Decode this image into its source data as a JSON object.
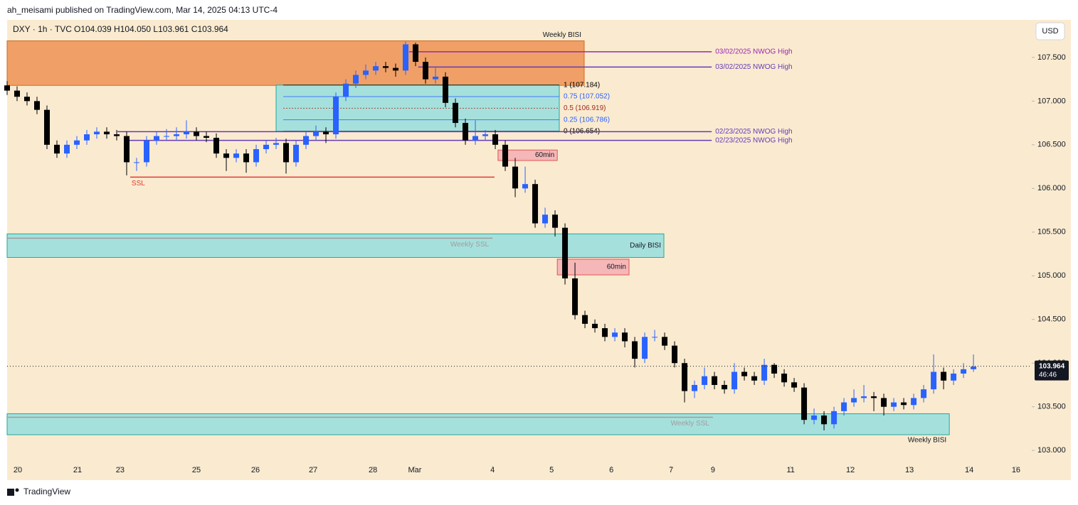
{
  "header": {
    "publisher": "ah_meisami published on TradingView.com, Mar 14, 2025 04:13 UTC-4",
    "symbol": "DXY · 1h · TVC",
    "ohlc": "O104.039 H104.050 L103.961 C103.964",
    "currency": "USD",
    "footer": "TradingView"
  },
  "chart_data": {
    "type": "candlestick",
    "up_color": "#2962ff",
    "down_color": "#000000",
    "xlim": [
      0,
      411.4
    ],
    "ylim": [
      102.66,
      107.93
    ],
    "xticks": [
      {
        "value": 4.3,
        "label": "20"
      },
      {
        "value": 28.3,
        "label": "21"
      },
      {
        "value": 45.4,
        "label": "23"
      },
      {
        "value": 76,
        "label": "25"
      },
      {
        "value": 99.7,
        "label": "26"
      },
      {
        "value": 122.9,
        "label": "27"
      },
      {
        "value": 146.9,
        "label": "28"
      },
      {
        "value": 163.7,
        "label": "Mar"
      },
      {
        "value": 194.9,
        "label": "4"
      },
      {
        "value": 218.6,
        "label": "5"
      },
      {
        "value": 242.6,
        "label": "6"
      },
      {
        "value": 266.6,
        "label": "7"
      },
      {
        "value": 283.4,
        "label": "9"
      },
      {
        "value": 314.6,
        "label": "11"
      },
      {
        "value": 338.6,
        "label": "12"
      },
      {
        "value": 362.3,
        "label": "13"
      },
      {
        "value": 386.3,
        "label": "14"
      },
      {
        "value": 405.1,
        "label": "16"
      }
    ],
    "yticks": [
      {
        "value": 103.0,
        "label": "103.000"
      },
      {
        "value": 103.5,
        "label": "103.500"
      },
      {
        "value": 104.0,
        "label": "104.000"
      },
      {
        "value": 104.5,
        "label": "104.500"
      },
      {
        "value": 105.0,
        "label": "105.000"
      },
      {
        "value": 105.5,
        "label": "105.500"
      },
      {
        "value": 106.0,
        "label": "106.000"
      },
      {
        "value": 106.5,
        "label": "106.500"
      },
      {
        "value": 107.0,
        "label": "107.000"
      },
      {
        "value": 107.5,
        "label": "107.500"
      }
    ],
    "x": [
      0,
      4,
      8,
      12,
      16,
      20,
      24,
      28,
      32,
      36,
      40,
      44,
      48,
      52,
      56,
      60,
      64,
      68,
      72,
      76,
      80,
      84,
      88,
      92,
      96,
      100,
      104,
      108,
      112,
      116,
      120,
      124,
      128,
      132,
      136,
      140,
      144,
      148,
      152,
      156,
      160,
      164,
      168,
      172,
      176,
      180,
      184,
      188,
      192,
      196,
      200,
      204,
      208,
      212,
      216,
      220,
      224,
      228,
      232,
      236,
      240,
      244,
      248,
      252,
      256,
      260,
      264,
      268,
      272,
      276,
      280,
      284,
      288,
      292,
      296,
      300,
      304,
      308,
      312,
      316,
      320,
      324,
      328,
      332,
      336,
      340,
      344,
      348,
      352,
      356,
      360,
      364,
      368,
      372,
      376,
      380,
      384,
      388
    ],
    "open": [
      107.18,
      107.12,
      107.05,
      107.0,
      106.9,
      106.5,
      106.4,
      106.5,
      106.55,
      106.62,
      106.65,
      106.62,
      106.6,
      106.3,
      106.3,
      106.55,
      106.6,
      106.6,
      106.62,
      106.65,
      106.6,
      106.58,
      106.4,
      106.35,
      106.4,
      106.3,
      106.45,
      106.5,
      106.52,
      106.3,
      106.5,
      106.6,
      106.65,
      106.62,
      107.05,
      107.2,
      107.3,
      107.35,
      107.4,
      107.38,
      107.35,
      107.65,
      107.45,
      107.25,
      107.28,
      106.98,
      106.75,
      106.55,
      106.6,
      106.62,
      106.5,
      106.25,
      106.0,
      106.05,
      105.6,
      105.7,
      105.55,
      104.97,
      104.55,
      104.45,
      104.4,
      104.3,
      104.35,
      104.25,
      104.05,
      104.3,
      104.3,
      104.2,
      104.0,
      103.68,
      103.75,
      103.85,
      103.75,
      103.7,
      103.9,
      103.85,
      103.8,
      103.98,
      103.88,
      103.78,
      103.72,
      103.35,
      103.4,
      103.3,
      103.45,
      103.55,
      103.6,
      103.62,
      103.6,
      103.5,
      103.55,
      103.52,
      103.6,
      103.7,
      103.9,
      103.8,
      103.88,
      103.93
    ],
    "high": [
      107.23,
      107.17,
      107.1,
      107.05,
      106.95,
      106.55,
      106.55,
      106.6,
      106.67,
      106.7,
      106.7,
      106.67,
      106.65,
      106.35,
      106.6,
      106.65,
      106.68,
      106.7,
      106.78,
      106.7,
      106.65,
      106.63,
      106.45,
      106.45,
      106.45,
      106.5,
      106.55,
      106.58,
      106.57,
      106.55,
      106.65,
      106.72,
      106.7,
      107.1,
      107.25,
      107.35,
      107.42,
      107.45,
      107.45,
      107.43,
      107.68,
      107.67,
      107.5,
      107.38,
      107.33,
      107.03,
      106.8,
      106.78,
      106.67,
      106.67,
      106.55,
      106.35,
      106.25,
      106.1,
      105.78,
      105.75,
      105.6,
      105.15,
      104.6,
      104.5,
      104.45,
      104.4,
      104.4,
      104.3,
      104.35,
      104.38,
      104.35,
      104.25,
      104.05,
      103.8,
      103.95,
      103.9,
      103.8,
      104.0,
      103.95,
      103.9,
      104.05,
      104.0,
      103.93,
      103.83,
      103.77,
      103.48,
      103.45,
      103.5,
      103.6,
      103.7,
      103.75,
      103.67,
      103.65,
      103.6,
      103.6,
      103.65,
      103.75,
      104.1,
      103.95,
      103.93,
      104.0,
      104.1
    ],
    "low": [
      107.07,
      107.0,
      106.95,
      106.85,
      106.45,
      106.35,
      106.35,
      106.45,
      106.5,
      106.57,
      106.57,
      106.55,
      106.15,
      106.2,
      106.25,
      106.5,
      106.55,
      106.55,
      106.57,
      106.55,
      106.53,
      106.35,
      106.2,
      106.3,
      106.18,
      106.25,
      106.4,
      106.45,
      106.17,
      106.25,
      106.45,
      106.55,
      106.52,
      106.57,
      107.0,
      107.15,
      107.25,
      107.3,
      107.33,
      107.28,
      107.3,
      107.4,
      107.2,
      107.2,
      106.93,
      106.7,
      106.5,
      106.5,
      106.55,
      106.45,
      106.2,
      105.9,
      105.95,
      105.55,
      105.55,
      105.45,
      104.9,
      104.5,
      104.4,
      104.35,
      104.25,
      104.25,
      104.18,
      103.95,
      104.0,
      104.25,
      104.15,
      103.95,
      103.55,
      103.6,
      103.7,
      103.7,
      103.65,
      103.65,
      103.8,
      103.75,
      103.75,
      103.83,
      103.73,
      103.67,
      103.3,
      103.3,
      103.23,
      103.25,
      103.4,
      103.5,
      103.55,
      103.45,
      103.4,
      103.45,
      103.47,
      103.47,
      103.55,
      103.65,
      103.7,
      103.75,
      103.83,
      103.9
    ],
    "close": [
      107.12,
      107.05,
      107.0,
      106.9,
      106.5,
      106.4,
      106.5,
      106.55,
      106.62,
      106.65,
      106.62,
      106.6,
      106.3,
      106.3,
      106.55,
      106.6,
      106.6,
      106.62,
      106.65,
      106.6,
      106.58,
      106.4,
      106.35,
      106.4,
      106.3,
      106.45,
      106.5,
      106.52,
      106.3,
      106.5,
      106.6,
      106.65,
      106.62,
      107.05,
      107.2,
      107.3,
      107.35,
      107.4,
      107.38,
      107.35,
      107.65,
      107.45,
      107.25,
      107.28,
      106.98,
      106.75,
      106.55,
      106.6,
      106.62,
      106.5,
      106.25,
      106.0,
      106.05,
      105.6,
      105.7,
      105.55,
      104.97,
      104.55,
      104.45,
      104.4,
      104.3,
      104.35,
      104.25,
      104.05,
      104.3,
      104.3,
      104.2,
      104.0,
      103.68,
      103.75,
      103.85,
      103.75,
      103.7,
      103.9,
      103.85,
      103.8,
      103.98,
      103.88,
      103.78,
      103.72,
      103.35,
      103.4,
      103.3,
      103.45,
      103.55,
      103.6,
      103.62,
      103.6,
      103.5,
      103.55,
      103.52,
      103.6,
      103.7,
      103.9,
      103.8,
      103.88,
      103.93,
      103.96
    ],
    "zones": [
      {
        "label": "Weekly BISI",
        "label_at": "above",
        "xlim": [
          0,
          231.7
        ],
        "ylim": [
          107.18,
          107.69
        ],
        "color": "#f0a066",
        "edge": "#d2691e"
      },
      {
        "label": "Daily BISI",
        "label_at": "inside",
        "xlim": [
          0,
          263.7
        ],
        "ylim": [
          105.21,
          105.48
        ],
        "color": "#a6e0dc",
        "edge": "#26a69a"
      },
      {
        "label": "Weekly BISI",
        "label_at": "below",
        "xlim": [
          0,
          378.3
        ],
        "ylim": [
          103.18,
          103.42
        ],
        "color": "#a6e0dc",
        "edge": "#26a69a"
      },
      {
        "label": "60min",
        "label_at": "inside",
        "xlim": [
          197.1,
          220.9
        ],
        "ylim": [
          106.32,
          106.44
        ],
        "color": "#f5b7b7",
        "edge": "#e05555"
      },
      {
        "label": "60min",
        "label_at": "inside",
        "xlim": [
          220.9,
          249.7
        ],
        "ylim": [
          105.01,
          105.19
        ],
        "color": "#f5b7b7",
        "edge": "#e05555"
      }
    ],
    "fib": {
      "xlim": [
        108,
        221.7
      ],
      "color": "#a6e0dc",
      "edge": "#26a69a",
      "levels": [
        {
          "value": 107.184,
          "label": "1 (107.184)",
          "color": "#000000"
        },
        {
          "value": 107.052,
          "label": "0.75 (107.052)",
          "color": "#2962ff"
        },
        {
          "value": 106.919,
          "label": "0.5 (106.919)",
          "color": "#9c2a1e"
        },
        {
          "value": 106.786,
          "label": "0.25 (106.786)",
          "color": "#2962ff"
        },
        {
          "value": 106.654,
          "label": "0 (106.654)",
          "color": "#000000"
        }
      ]
    },
    "levels": [
      {
        "label": "03/02/2025 NWOG High",
        "label_at": "end",
        "y": 107.565,
        "xlim": [
          161.4,
          282.9
        ],
        "color": "#9c27b0"
      },
      {
        "label": "03/02/2025 NWOG High",
        "label_at": "end",
        "y": 107.39,
        "xlim": [
          165.1,
          282.9
        ],
        "color": "#673ab7"
      },
      {
        "label": "02/23/2025 NWOG High",
        "label_at": "end",
        "y": 106.65,
        "xlim": [
          44.3,
          282.9
        ],
        "color": "#673ab7"
      },
      {
        "label": "02/23/2025 NWOG High",
        "label_at": "end",
        "y": 106.55,
        "xlim": [
          47.1,
          282.9
        ],
        "color": "#673ab7"
      },
      {
        "label": "SSL",
        "label_at": "start",
        "y": 106.13,
        "xlim": [
          49.4,
          195.7
        ],
        "color": "#e53935"
      },
      {
        "label": "Weekly SSL",
        "label_at": "middle",
        "y": 105.43,
        "xlim": [
          0,
          194.9
        ],
        "color": "#9e9e9e"
      },
      {
        "label": "Weekly SSL",
        "label_at": "middle",
        "y": 103.38,
        "xlim": [
          0,
          283.4
        ],
        "color": "#9e9e9e"
      }
    ],
    "last": {
      "value": 103.964,
      "label": "103.964",
      "countdown": "46:46"
    }
  }
}
